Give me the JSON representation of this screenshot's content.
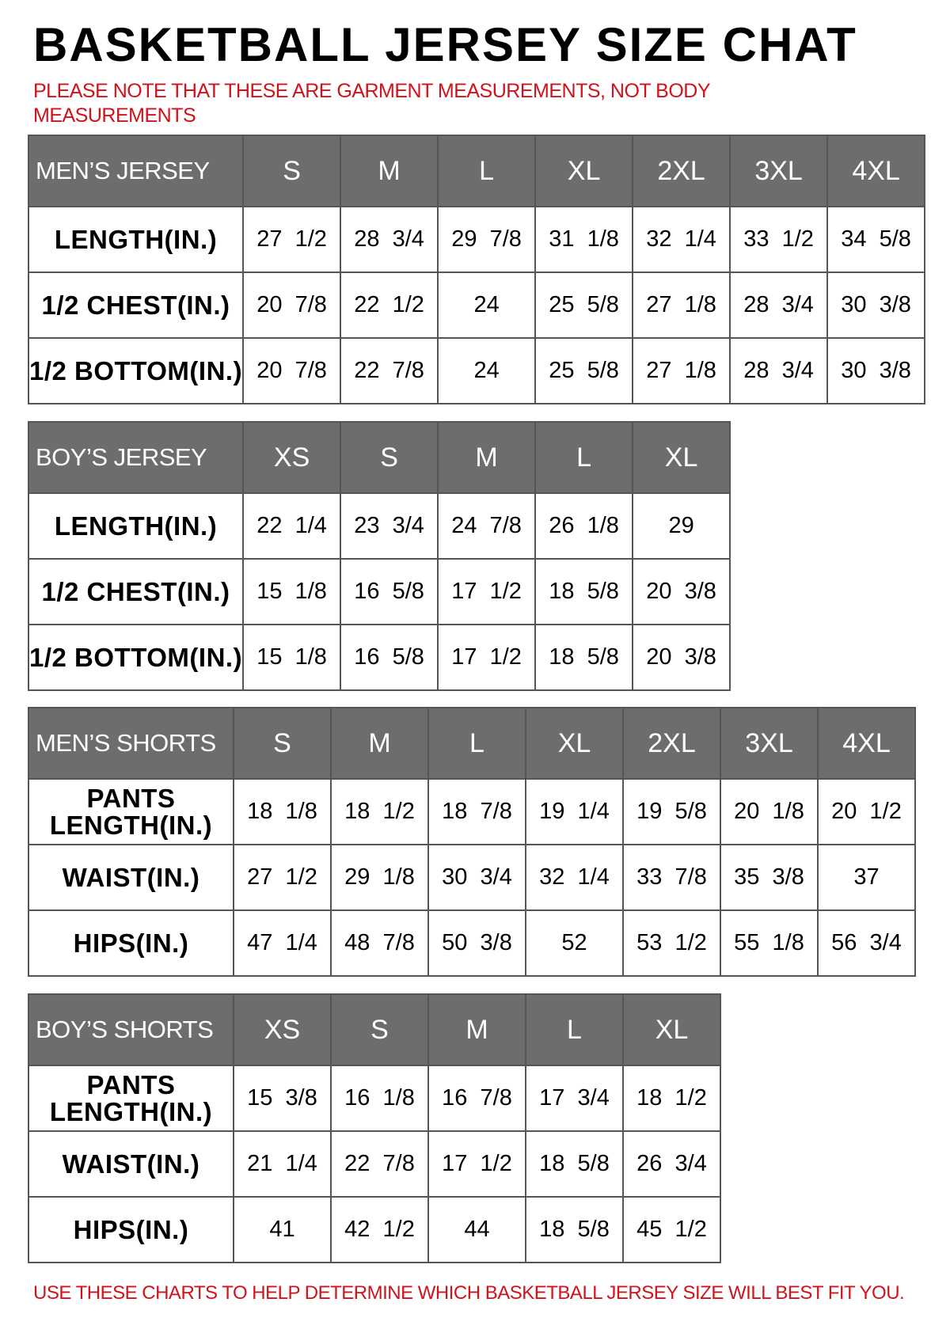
{
  "title": "BASKETBALL JERSEY SIZE CHAT",
  "note": "PLEASE NOTE THAT THESE ARE GARMENT MEASUREMENTS, NOT BODY MEASUREMENTS",
  "footer": "USE THESE CHARTS TO HELP DETERMINE WHICH BASKETBALL JERSEY SIZE WILL BEST FIT YOU.",
  "colors": {
    "header_bg": "#6d6d6d",
    "accent_red": "#d0121b"
  },
  "tables": [
    {
      "name": "MEN’S JERSEY",
      "sizes": [
        "S",
        "M",
        "L",
        "XL",
        "2XL",
        "3XL",
        "4XL"
      ],
      "rows": [
        {
          "label": "LENGTH(IN.)",
          "values": [
            "27 1/2",
            "28 3/4",
            "29 7/8",
            "31 1/8",
            "32 1/4",
            "33 1/2",
            "34 5/8"
          ]
        },
        {
          "label": "1/2 CHEST(IN.)",
          "values": [
            "20 7/8",
            "22 1/2",
            "24",
            "25 5/8",
            "27 1/8",
            "28 3/4",
            "30 3/8"
          ]
        },
        {
          "label": "1/2 BOTTOM(IN.)",
          "values": [
            "20 7/8",
            "22 7/8",
            "24",
            "25 5/8",
            "27 1/8",
            "28 3/4",
            "30 3/8"
          ]
        }
      ]
    },
    {
      "name": "BOY’S JERSEY",
      "sizes": [
        "XS",
        "S",
        "M",
        "L",
        "XL"
      ],
      "rows": [
        {
          "label": "LENGTH(IN.)",
          "values": [
            "22 1/4",
            "23 3/4",
            "24 7/8",
            "26 1/8",
            "29"
          ]
        },
        {
          "label": "1/2 CHEST(IN.)",
          "values": [
            "15 1/8",
            "16 5/8",
            "17 1/2",
            "18 5/8",
            "20 3/8"
          ]
        },
        {
          "label": "1/2 BOTTOM(IN.)",
          "values": [
            "15 1/8",
            "16 5/8",
            "17 1/2",
            "18 5/8",
            "20 3/8"
          ]
        }
      ]
    },
    {
      "name": "MEN’S SHORTS",
      "sizes": [
        "S",
        "M",
        "L",
        "XL",
        "2XL",
        "3XL",
        "4XL"
      ],
      "rows": [
        {
          "label": "PANTS LENGTH(IN.)",
          "values": [
            "18 1/8",
            "18 1/2",
            "18 7/8",
            "19 1/4",
            "19 5/8",
            "20 1/8",
            "20 1/2"
          ]
        },
        {
          "label": "WAIST(IN.)",
          "values": [
            "27 1/2",
            "29 1/8",
            "30 3/4",
            "32 1/4",
            "33 7/8",
            "35 3/8",
            "37"
          ]
        },
        {
          "label": "HIPS(IN.)",
          "values": [
            "47 1/4",
            "48 7/8",
            "50 3/8",
            "52",
            "53 1/2",
            "55 1/8",
            "56 3/4"
          ]
        }
      ]
    },
    {
      "name": "BOY’S SHORTS",
      "sizes": [
        "XS",
        "S",
        "M",
        "L",
        "XL"
      ],
      "rows": [
        {
          "label": "PANTS LENGTH(IN.)",
          "values": [
            "15 3/8",
            "16 1/8",
            "16 7/8",
            "17 3/4",
            "18 1/2"
          ]
        },
        {
          "label": "WAIST(IN.)",
          "values": [
            "21 1/4",
            "22 7/8",
            "17 1/2",
            "18 5/8",
            "26 3/4"
          ]
        },
        {
          "label": "HIPS(IN.)",
          "values": [
            "41",
            "42 1/2",
            "44",
            "18 5/8",
            "45 1/2"
          ]
        }
      ]
    }
  ]
}
